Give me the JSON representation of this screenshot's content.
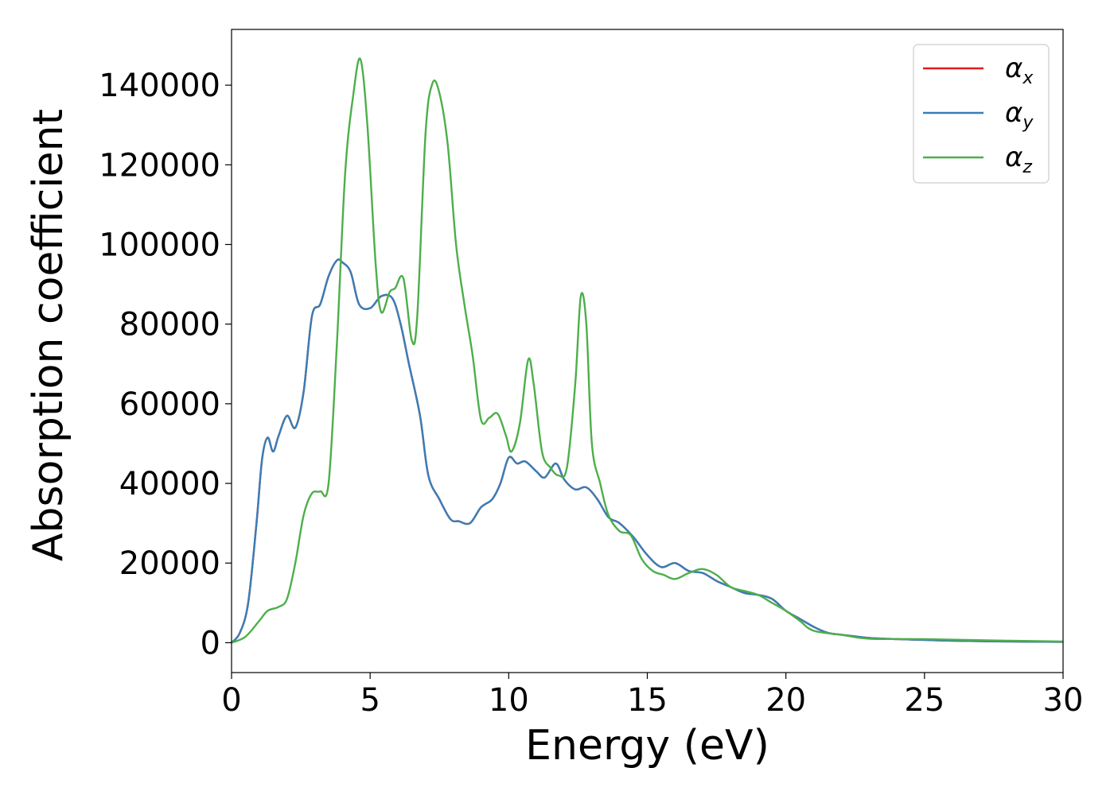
{
  "chart_data": {
    "type": "line",
    "xlabel": "Energy (eV)",
    "ylabel": "Absorption coefficient",
    "xlim": [
      0,
      30
    ],
    "ylim": [
      -7500,
      154000
    ],
    "xticks": [
      0,
      5,
      10,
      15,
      20,
      25,
      30
    ],
    "yticks": [
      0,
      20000,
      40000,
      60000,
      80000,
      100000,
      120000,
      140000
    ],
    "grid": false,
    "legend_position": "top-right",
    "series": [
      {
        "name": "α_x",
        "label_main": "α",
        "label_sub": "x",
        "color": "#e41a1c",
        "x": [
          0,
          0.3,
          0.6,
          0.9,
          1.1,
          1.3,
          1.5,
          1.7,
          2.0,
          2.3,
          2.6,
          2.9,
          3.2,
          3.5,
          3.8,
          4.0,
          4.3,
          4.6,
          5.0,
          5.4,
          5.8,
          6.1,
          6.4,
          6.8,
          7.1,
          7.5,
          7.9,
          8.2,
          8.6,
          9.0,
          9.4,
          9.7,
          10.0,
          10.3,
          10.6,
          11.0,
          11.3,
          11.7,
          12.0,
          12.4,
          12.8,
          13.2,
          13.6,
          14.0,
          14.5,
          15.0,
          15.5,
          16.0,
          16.5,
          17.0,
          17.5,
          18.0,
          18.5,
          19.0,
          19.5,
          20.0,
          20.5,
          21.0,
          21.5,
          22.0,
          23.0,
          24.0,
          25.0,
          26.0,
          28.0,
          30.0
        ],
        "y": [
          0,
          2500,
          10000,
          30000,
          46000,
          51500,
          48000,
          52000,
          57000,
          54000,
          63000,
          82000,
          85000,
          92000,
          96000,
          95500,
          93000,
          85000,
          84000,
          87000,
          86500,
          80000,
          70000,
          57000,
          42000,
          36000,
          31000,
          30500,
          30000,
          34000,
          36000,
          40000,
          46500,
          45000,
          45500,
          43000,
          41500,
          45000,
          41000,
          38500,
          39000,
          36000,
          31500,
          30000,
          26500,
          22000,
          19000,
          20000,
          18000,
          17500,
          15500,
          14000,
          12500,
          12000,
          11000,
          8000,
          6000,
          4000,
          2500,
          2000,
          1200,
          900,
          700,
          500,
          300,
          200
        ]
      },
      {
        "name": "α_y",
        "label_main": "α",
        "label_sub": "y",
        "color": "#377eb8",
        "x": [
          0,
          0.3,
          0.6,
          0.9,
          1.1,
          1.3,
          1.5,
          1.7,
          2.0,
          2.3,
          2.6,
          2.9,
          3.2,
          3.5,
          3.8,
          4.0,
          4.3,
          4.6,
          5.0,
          5.4,
          5.8,
          6.1,
          6.4,
          6.8,
          7.1,
          7.5,
          7.9,
          8.2,
          8.6,
          9.0,
          9.4,
          9.7,
          10.0,
          10.3,
          10.6,
          11.0,
          11.3,
          11.7,
          12.0,
          12.4,
          12.8,
          13.2,
          13.6,
          14.0,
          14.5,
          15.0,
          15.5,
          16.0,
          16.5,
          17.0,
          17.5,
          18.0,
          18.5,
          19.0,
          19.5,
          20.0,
          20.5,
          21.0,
          21.5,
          22.0,
          23.0,
          24.0,
          25.0,
          26.0,
          28.0,
          30.0
        ],
        "y": [
          0,
          2500,
          10000,
          30000,
          46000,
          51500,
          48000,
          52000,
          57000,
          54000,
          63000,
          82000,
          85000,
          92000,
          96000,
          95500,
          93000,
          85000,
          84000,
          87000,
          86500,
          80000,
          70000,
          57000,
          42000,
          36000,
          31000,
          30500,
          30000,
          34000,
          36000,
          40000,
          46500,
          45000,
          45500,
          43000,
          41500,
          45000,
          41000,
          38500,
          39000,
          36000,
          31500,
          30000,
          26500,
          22000,
          19000,
          20000,
          18000,
          17500,
          15500,
          14000,
          12500,
          12000,
          11000,
          8000,
          6000,
          4000,
          2500,
          2000,
          1200,
          900,
          700,
          500,
          300,
          200
        ]
      },
      {
        "name": "α_z",
        "label_main": "α",
        "label_sub": "z",
        "color": "#4daf4a",
        "x": [
          0,
          0.5,
          1.0,
          1.3,
          1.7,
          2.0,
          2.3,
          2.6,
          2.9,
          3.2,
          3.5,
          3.8,
          4.1,
          4.4,
          4.65,
          4.9,
          5.2,
          5.4,
          5.7,
          5.9,
          6.2,
          6.5,
          6.7,
          7.0,
          7.25,
          7.5,
          7.8,
          8.1,
          8.4,
          8.7,
          9.0,
          9.3,
          9.6,
          9.9,
          10.1,
          10.4,
          10.7,
          10.9,
          11.2,
          11.5,
          11.8,
          12.1,
          12.4,
          12.6,
          12.8,
          13.0,
          13.3,
          13.6,
          14.0,
          14.4,
          14.8,
          15.2,
          15.6,
          16.0,
          16.5,
          17.0,
          17.5,
          18.0,
          18.5,
          19.0,
          19.5,
          20.0,
          20.5,
          21.0,
          22.0,
          23.0,
          25.0,
          28.0,
          30.0
        ],
        "y": [
          0,
          1500,
          5500,
          8000,
          9000,
          11000,
          20000,
          32000,
          37500,
          38000,
          40000,
          75000,
          118000,
          138000,
          146500,
          130000,
          95000,
          83000,
          88000,
          89000,
          91500,
          76000,
          82000,
          128000,
          140500,
          138000,
          125000,
          100000,
          85000,
          72000,
          56000,
          56500,
          57500,
          52000,
          48000,
          55000,
          71000,
          65000,
          48000,
          44000,
          42000,
          44000,
          65000,
          87000,
          80000,
          50000,
          40000,
          32000,
          28000,
          27000,
          21000,
          18000,
          17000,
          16000,
          17500,
          18500,
          17000,
          14000,
          13000,
          12000,
          10000,
          8000,
          5500,
          3000,
          2000,
          1000,
          900,
          500,
          300
        ]
      }
    ]
  }
}
